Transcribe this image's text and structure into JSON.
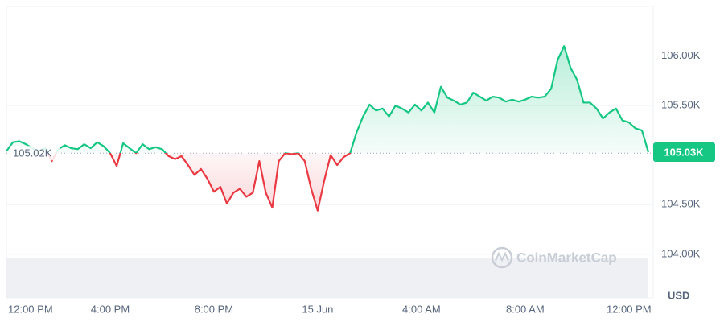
{
  "chart_data": {
    "type": "line",
    "watermark": "CoinMarketCap",
    "currency": "USD",
    "baseline": {
      "value": 105.02,
      "label": "105.02K"
    },
    "current": {
      "value": 105.03,
      "label": "105.03K"
    },
    "up_color": "#16c784",
    "down_color": "#ea3943",
    "ylim": [
      103.56,
      106.5
    ],
    "yticks": [
      {
        "value": 104,
        "label": "104.00K"
      },
      {
        "value": 104.5,
        "label": "104.50K"
      },
      {
        "value": 105,
        "label": "105.00K"
      },
      {
        "value": 105.5,
        "label": "105.50K"
      },
      {
        "value": 106,
        "label": "106.00K"
      }
    ],
    "grid": true,
    "categories": [
      "12:00 PM",
      null,
      null,
      null,
      null,
      null,
      null,
      null,
      null,
      null,
      null,
      null,
      null,
      null,
      null,
      null,
      "4:00 PM",
      null,
      null,
      null,
      null,
      null,
      null,
      null,
      null,
      null,
      null,
      null,
      null,
      null,
      null,
      null,
      "8:00 PM",
      null,
      null,
      null,
      null,
      null,
      null,
      null,
      null,
      null,
      null,
      null,
      null,
      null,
      null,
      null,
      "15 Jun",
      null,
      null,
      null,
      null,
      null,
      null,
      null,
      null,
      null,
      null,
      null,
      null,
      null,
      null,
      null,
      "4:00 AM",
      null,
      null,
      null,
      null,
      null,
      null,
      null,
      null,
      null,
      null,
      null,
      null,
      null,
      null,
      null,
      "8:00 AM",
      null,
      null,
      null,
      null,
      null,
      null,
      null,
      null,
      null,
      null,
      null,
      null,
      null,
      null,
      null,
      "12:00 PM",
      null,
      null,
      null
    ],
    "values": [
      105.04,
      105.13,
      105.14,
      105.11,
      105.07,
      105.04,
      105.07,
      104.94,
      105.06,
      105.1,
      105.07,
      105.06,
      105.11,
      105.07,
      105.13,
      105.09,
      105.02,
      104.89,
      105.12,
      105.07,
      105.02,
      105.11,
      105.06,
      105.08,
      105.06,
      104.99,
      104.96,
      104.99,
      104.9,
      104.8,
      104.86,
      104.76,
      104.63,
      104.68,
      104.51,
      104.62,
      104.66,
      104.58,
      104.62,
      104.94,
      104.62,
      104.47,
      104.94,
      105.02,
      105.01,
      105.02,
      104.94,
      104.66,
      104.44,
      104.74,
      105.0,
      104.9,
      104.98,
      105.02,
      105.23,
      105.39,
      105.51,
      105.45,
      105.47,
      105.39,
      105.5,
      105.47,
      105.43,
      105.51,
      105.45,
      105.53,
      105.43,
      105.69,
      105.58,
      105.55,
      105.51,
      105.53,
      105.63,
      105.59,
      105.55,
      105.59,
      105.58,
      105.54,
      105.56,
      105.54,
      105.56,
      105.59,
      105.58,
      105.59,
      105.67,
      105.96,
      106.1,
      105.88,
      105.76,
      105.53,
      105.53,
      105.47,
      105.37,
      105.43,
      105.47,
      105.35,
      105.33,
      105.27,
      105.25,
      105.03
    ]
  }
}
